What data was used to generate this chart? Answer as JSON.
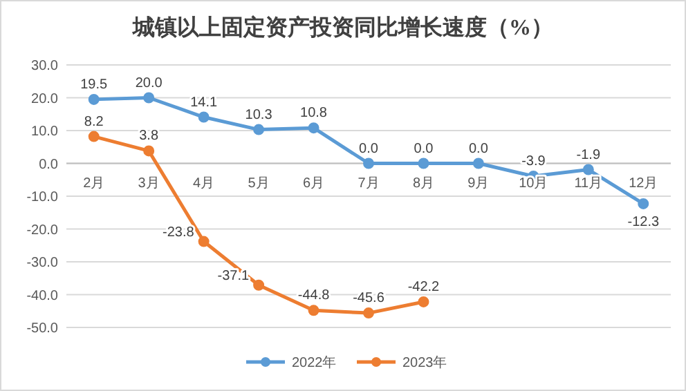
{
  "chart_data": {
    "type": "line",
    "title": "城镇以上固定资产投资同比增长速度（%）",
    "categories": [
      "2月",
      "3月",
      "4月",
      "5月",
      "6月",
      "7月",
      "8月",
      "9月",
      "10月",
      "11月",
      "12月"
    ],
    "series": [
      {
        "name": "2022年",
        "color": "#5b9bd5",
        "values": [
          19.5,
          20.0,
          14.1,
          10.3,
          10.8,
          0.0,
          0.0,
          0.0,
          -3.9,
          -1.9,
          -12.3
        ],
        "value_labels": [
          "19.5",
          "20.0",
          "14.1",
          "10.3",
          "10.8",
          "0.0",
          "0.0",
          "0.0",
          "-3.9",
          "-1.9",
          "-12.3"
        ]
      },
      {
        "name": "2023年",
        "color": "#ed7d31",
        "values": [
          8.2,
          3.8,
          -23.8,
          -37.1,
          -44.8,
          -45.6,
          -42.2,
          null,
          null,
          null,
          null
        ],
        "value_labels": [
          "8.2",
          "3.8",
          "-23.8",
          "-37.1",
          "-44.8",
          "-45.6",
          "-42.2",
          null,
          null,
          null,
          null
        ]
      }
    ],
    "ylim": [
      -50,
      30
    ],
    "yticks": [
      {
        "value": -50,
        "label": "-50.0"
      },
      {
        "value": -40,
        "label": "-40.0"
      },
      {
        "value": -30,
        "label": "-30.0"
      },
      {
        "value": -20,
        "label": "-20.0"
      },
      {
        "value": -10,
        "label": "-10.0"
      },
      {
        "value": 0,
        "label": "0.0"
      },
      {
        "value": 10,
        "label": "10.0"
      },
      {
        "value": 20,
        "label": "20.0"
      },
      {
        "value": 30,
        "label": "30.0"
      }
    ],
    "grid": "y",
    "legend": "bottom",
    "marker": "circle",
    "line_style": "solid"
  }
}
